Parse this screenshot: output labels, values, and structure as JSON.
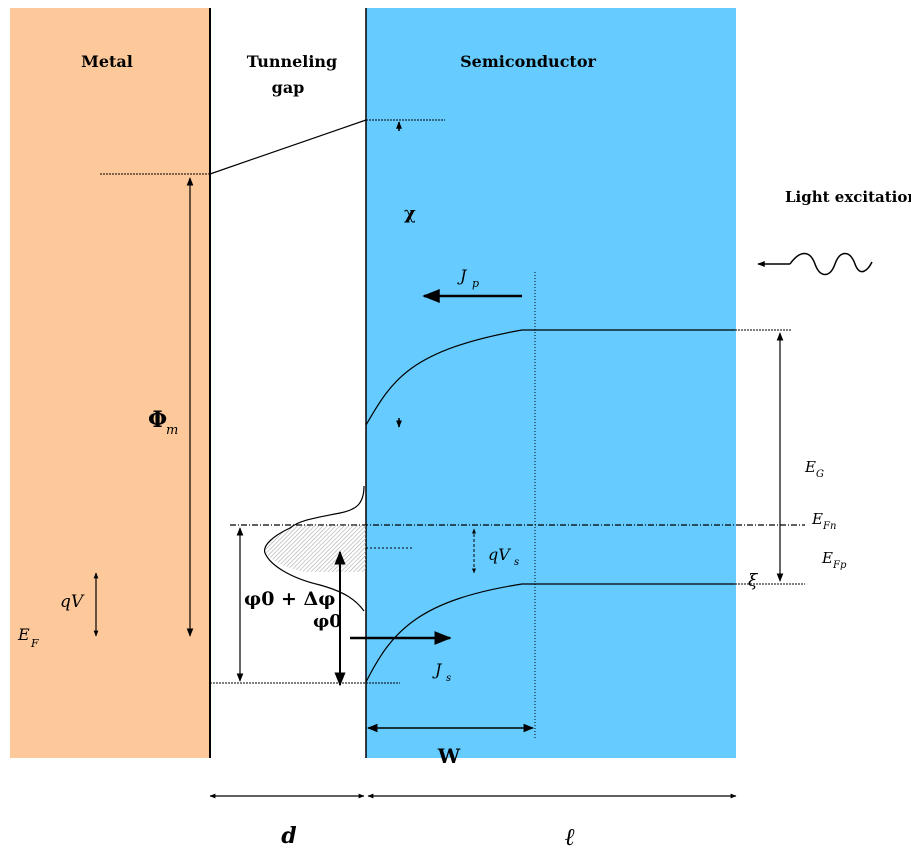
{
  "regions": {
    "metal": {
      "label": "Metal",
      "color": "#FDC99A"
    },
    "gap": {
      "label_line1": "Tunneling",
      "label_line2": "gap"
    },
    "semiconductor": {
      "label": "Semiconductor",
      "color": "#66CCFF"
    }
  },
  "annotations": {
    "light": "Light excitation",
    "phi_m": "Φ",
    "phi_m_sub": "m",
    "qV": "qV",
    "EF": "E",
    "EF_sub": "F",
    "EG": "E",
    "EG_sub": "G",
    "EFn": "E",
    "EFn_sub": "Fn",
    "EFp": "E",
    "EFp_sub": "Fp",
    "chi": "χ",
    "xi": "ξ",
    "Jp": "J",
    "Jp_sub": "p",
    "Js": "J",
    "Js_sub": "s",
    "qVs": "qV",
    "qVs_sub": "s",
    "phi0_dphi": "φ0 + Δφ",
    "phi0": "φ0",
    "W": "W",
    "d": "d",
    "ell": "ℓ"
  },
  "colors": {
    "line": "#000000",
    "hatch": "#bbbbbb"
  }
}
